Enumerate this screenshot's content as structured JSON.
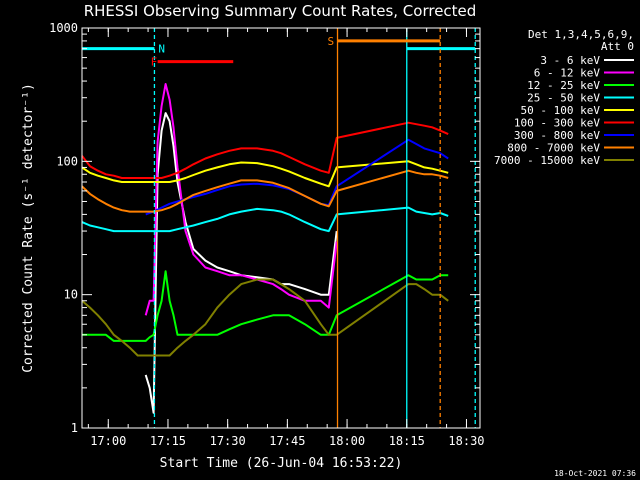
{
  "chart_data": {
    "type": "line",
    "title": "RHESSI Observing Summary Count Rates, Corrected",
    "xlabel": "Start Time (26-Jun-04 16:53:22)",
    "ylabel": "Corrected Count Rate (s⁻¹ detector⁻¹)",
    "x_unit": "minutes after 16:53:22",
    "xlim": [
      0,
      100
    ],
    "ylim": [
      1,
      1000
    ],
    "yscale": "log",
    "x_ticks": [
      {
        "label": "17:00",
        "x": 6.6
      },
      {
        "label": "17:15",
        "x": 21.6
      },
      {
        "label": "17:30",
        "x": 36.6
      },
      {
        "label": "17:45",
        "x": 51.6
      },
      {
        "label": "18:00",
        "x": 66.6
      },
      {
        "label": "18:15",
        "x": 81.6
      },
      {
        "label": "18:30",
        "x": 96.6
      }
    ],
    "y_ticks": [
      {
        "label": "1",
        "y": 1
      },
      {
        "label": "10",
        "y": 10
      },
      {
        "label": "100",
        "y": 100
      },
      {
        "label": "1000",
        "y": 1000
      }
    ],
    "legend_header": [
      "Det 1,3,4,5,6,9,",
      "Att 0"
    ],
    "series": [
      {
        "name": "3 - 6 keV",
        "color": "#ffffff",
        "x": [
          0,
          4,
          8,
          12,
          16,
          17,
          18,
          19,
          20,
          21,
          22,
          23,
          24,
          26,
          28,
          31,
          34,
          37,
          40,
          44,
          48,
          50,
          52,
          56,
          60,
          62,
          64
        ],
        "y": [
          null,
          null,
          null,
          null,
          2.5,
          2,
          1.3,
          80,
          170,
          230,
          200,
          130,
          70,
          35,
          22,
          18,
          16,
          15,
          14,
          13.5,
          13,
          12,
          12,
          11,
          10,
          10,
          30
        ]
      },
      {
        "name": "6 - 12 keV",
        "color": "#ff00ff",
        "x": [
          0,
          4,
          8,
          12,
          16,
          17,
          18,
          19,
          20,
          21,
          22,
          23,
          24,
          26,
          28,
          31,
          34,
          37,
          40,
          44,
          48,
          50,
          52,
          56,
          60,
          62,
          64
        ],
        "y": [
          null,
          null,
          null,
          null,
          7,
          9,
          9,
          140,
          260,
          380,
          290,
          180,
          90,
          30,
          20,
          16,
          15,
          14,
          14,
          13,
          12,
          11,
          10,
          9,
          9,
          8,
          25
        ]
      },
      {
        "name": "12 - 25 keV",
        "color": "#00ff00",
        "x": [
          0,
          2,
          4,
          6,
          8,
          10,
          12,
          14,
          16,
          17,
          18,
          19,
          20,
          21,
          22,
          23,
          24,
          26,
          28,
          31,
          34,
          37,
          40,
          44,
          48,
          50,
          52,
          56,
          60,
          62,
          64,
          82,
          84,
          86,
          88,
          90,
          92
        ],
        "y": [
          5,
          5,
          5,
          5,
          4.5,
          4.5,
          4.5,
          4.5,
          4.5,
          4.8,
          5,
          7,
          9,
          15,
          9,
          7,
          5,
          5,
          5,
          5,
          5,
          5.5,
          6,
          6.5,
          7,
          7,
          7,
          6,
          5,
          5,
          7,
          14,
          13,
          13,
          13,
          14,
          14
        ]
      },
      {
        "name": "25 - 50 keV",
        "color": "#00ffff",
        "x": [
          0,
          2,
          4,
          6,
          8,
          10,
          12,
          14,
          16,
          18,
          20,
          22,
          24,
          26,
          28,
          31,
          34,
          37,
          40,
          44,
          48,
          50,
          52,
          56,
          60,
          62,
          64,
          82,
          84,
          86,
          88,
          90,
          92
        ],
        "y": [
          35,
          33,
          32,
          31,
          30,
          30,
          30,
          30,
          30,
          30,
          30,
          30,
          31,
          32,
          33,
          35,
          37,
          40,
          42,
          44,
          43,
          42,
          40,
          35,
          31,
          30,
          40,
          45,
          42,
          41,
          40,
          41,
          39
        ]
      },
      {
        "name": "50 - 100 keV",
        "color": "#ffff00",
        "x": [
          0,
          2,
          4,
          6,
          8,
          10,
          12,
          14,
          16,
          18,
          20,
          22,
          24,
          26,
          28,
          31,
          34,
          37,
          40,
          44,
          48,
          50,
          52,
          56,
          60,
          62,
          64,
          82,
          84,
          86,
          88,
          90,
          92
        ],
        "y": [
          90,
          82,
          78,
          75,
          72,
          70,
          70,
          70,
          70,
          70,
          70,
          70,
          72,
          75,
          79,
          85,
          90,
          95,
          98,
          97,
          92,
          88,
          84,
          75,
          68,
          65,
          90,
          100,
          95,
          90,
          88,
          85,
          82
        ]
      },
      {
        "name": "100 - 300 keV",
        "color": "#ff0000",
        "x": [
          0,
          2,
          4,
          6,
          8,
          10,
          12,
          14,
          16,
          18,
          20,
          22,
          24,
          26,
          28,
          31,
          34,
          37,
          40,
          44,
          48,
          50,
          52,
          56,
          60,
          62,
          64,
          82,
          84,
          86,
          88,
          90,
          92
        ],
        "y": [
          110,
          92,
          85,
          80,
          78,
          75,
          75,
          75,
          75,
          75,
          75,
          78,
          82,
          88,
          95,
          105,
          113,
          120,
          125,
          125,
          120,
          115,
          108,
          95,
          85,
          82,
          150,
          195,
          190,
          185,
          180,
          170,
          160
        ]
      },
      {
        "name": "300 - 800 keV",
        "color": "#0000ff",
        "x": [
          0,
          2,
          4,
          6,
          8,
          10,
          12,
          14,
          16,
          18,
          20,
          22,
          24,
          26,
          28,
          31,
          34,
          37,
          40,
          44,
          48,
          50,
          52,
          56,
          60,
          62,
          64,
          82,
          84,
          86,
          88,
          90,
          92
        ],
        "y": [
          null,
          null,
          null,
          null,
          null,
          null,
          null,
          null,
          40,
          42,
          45,
          48,
          50,
          52,
          54,
          57,
          61,
          65,
          67,
          68,
          66,
          64,
          62,
          55,
          48,
          47,
          65,
          145,
          135,
          125,
          120,
          115,
          105
        ]
      },
      {
        "name": "800 - 7000 keV",
        "color": "#ff8000",
        "x": [
          0,
          2,
          4,
          6,
          8,
          10,
          12,
          14,
          16,
          18,
          20,
          22,
          24,
          26,
          28,
          31,
          34,
          37,
          40,
          44,
          48,
          50,
          52,
          56,
          60,
          62,
          64,
          82,
          84,
          86,
          88,
          90,
          92
        ],
        "y": [
          65,
          57,
          52,
          48,
          45,
          43,
          42,
          42,
          42,
          42,
          43,
          45,
          48,
          52,
          56,
          60,
          64,
          68,
          72,
          72,
          69,
          66,
          63,
          55,
          48,
          46,
          60,
          85,
          82,
          80,
          80,
          78,
          75
        ]
      },
      {
        "name": "7000 - 15000 keV",
        "color": "#808000",
        "x": [
          0,
          2,
          4,
          6,
          8,
          10,
          12,
          14,
          16,
          18,
          20,
          22,
          24,
          26,
          28,
          31,
          34,
          37,
          40,
          44,
          48,
          50,
          52,
          56,
          60,
          62,
          64,
          82,
          84,
          86,
          88,
          90,
          92
        ],
        "y": [
          9,
          8,
          7,
          6,
          5,
          4.5,
          4,
          3.5,
          3.5,
          3.5,
          3.5,
          3.5,
          4,
          4.5,
          5,
          6,
          8,
          10,
          12,
          13,
          13,
          12,
          11,
          9,
          6,
          5,
          5,
          12,
          12,
          11,
          10,
          10,
          9
        ]
      }
    ],
    "annotations": {
      "N": {
        "label": "N",
        "color": "#00ffff",
        "line_x": 18.2,
        "bars": [
          [
            0,
            18.2
          ],
          [
            81.6,
            98.8
          ]
        ],
        "bar_level": 700
      },
      "F": {
        "label": "F",
        "color": "#ff0000",
        "bars": [
          [
            19,
            38
          ]
        ],
        "bar_level": 560
      },
      "S": {
        "label": "S",
        "color": "#ff8000",
        "line_x": 64.2,
        "bars": [
          [
            64.2,
            90
          ]
        ],
        "bar_level": 800,
        "dashed_x": 90
      }
    },
    "footer_date": "18-Oct-2021 07:36"
  }
}
